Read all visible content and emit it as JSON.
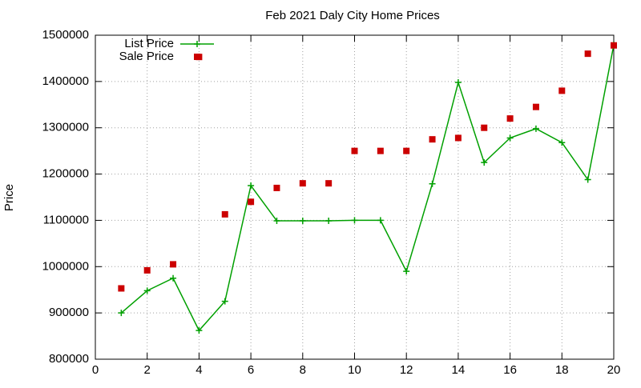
{
  "chart_data": {
    "type": "line",
    "title": "Feb 2021 Daly City Home Prices",
    "y_label": "Price",
    "x": [
      1,
      2,
      3,
      4,
      5,
      6,
      7,
      8,
      9,
      10,
      11,
      12,
      13,
      14,
      15,
      16,
      17,
      18,
      19,
      20
    ],
    "series": [
      {
        "name": "List Price",
        "color": "#00a000",
        "mode": "linespoints",
        "values": [
          900000,
          948000,
          975000,
          862000,
          925000,
          1175000,
          1099000,
          1099000,
          1099000,
          1100000,
          1100000,
          990000,
          1179000,
          1398000,
          1225000,
          1278000,
          1298000,
          1268000,
          1188000,
          1479000
        ]
      },
      {
        "name": "Sale Price",
        "color": "#cc0000",
        "mode": "points",
        "values": [
          953000,
          992000,
          1005000,
          1453000,
          1113000,
          1140000,
          1170000,
          1180000,
          1180000,
          1250000,
          1250000,
          1250000,
          1275000,
          1278000,
          1300000,
          1320000,
          1345000,
          1380000,
          1460000,
          1478000
        ]
      }
    ],
    "xlim": [
      0,
      20
    ],
    "xticks": [
      0,
      2,
      4,
      6,
      8,
      10,
      12,
      14,
      16,
      18,
      20
    ],
    "ylim": [
      800000,
      1500000
    ],
    "yticks": [
      800000,
      900000,
      1000000,
      1100000,
      1200000,
      1300000,
      1400000,
      1500000
    ],
    "grid": true,
    "legend": "top-left"
  }
}
